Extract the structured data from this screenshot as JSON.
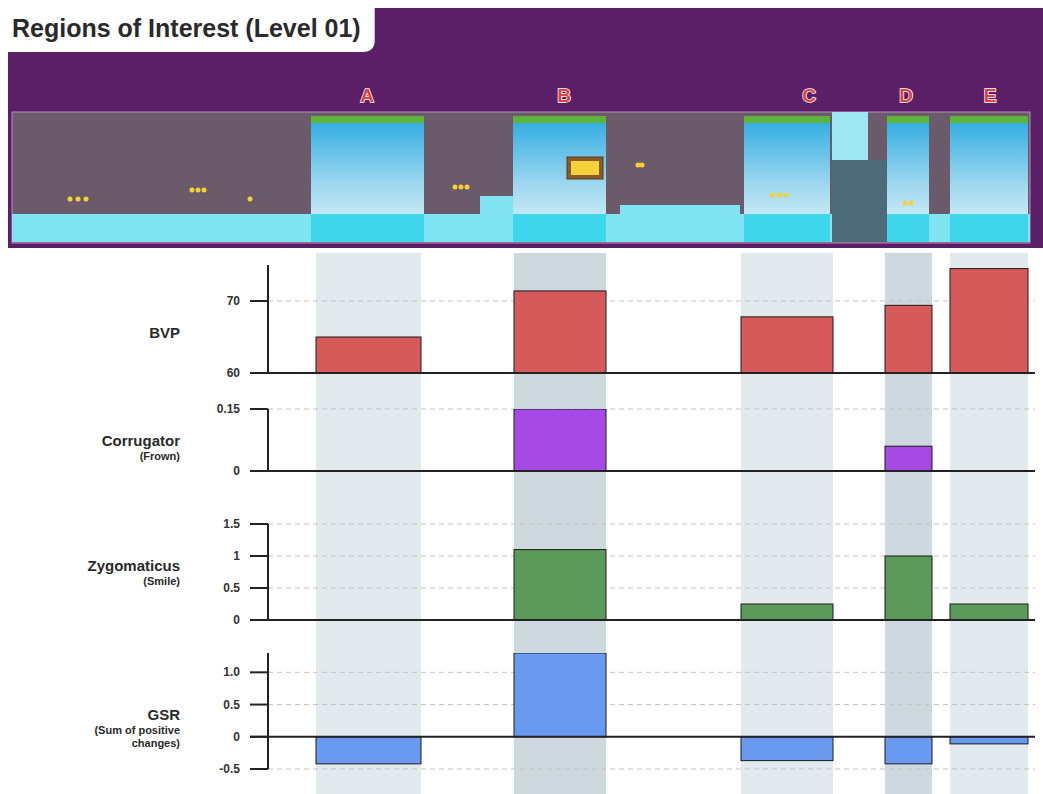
{
  "title": "Regions of Interest (Level 01)",
  "level_strip": {
    "regions": [
      "A",
      "B",
      "C",
      "D",
      "E"
    ]
  },
  "chart_data": [
    {
      "type": "bar",
      "title": "BVP",
      "categories": [
        null,
        null,
        null,
        null,
        null
      ],
      "values": [
        65,
        71.4,
        67.8,
        69.4,
        74.5
      ],
      "color": "#d65a5a",
      "ylim": [
        60,
        75
      ],
      "yticks": [
        60,
        70
      ],
      "grid": true
    },
    {
      "type": "bar",
      "title": "Corrugator",
      "subtitle": "(Frown)",
      "categories": [
        null,
        null,
        null,
        null,
        null
      ],
      "values": [
        0,
        0.15,
        0,
        0.06,
        0
      ],
      "color": "#a64ae6",
      "ylim": [
        0,
        0.15
      ],
      "yticks": [
        0,
        0.15
      ],
      "grid": true
    },
    {
      "type": "bar",
      "title": "Zygomaticus",
      "subtitle": "(Smile)",
      "categories": [
        null,
        null,
        null,
        null,
        null
      ],
      "values": [
        0,
        1.1,
        0.25,
        1,
        0.25
      ],
      "color": "#5b9a58",
      "ylim": [
        0,
        1.5
      ],
      "yticks": [
        0,
        0.5,
        1,
        1.5
      ],
      "grid": true
    },
    {
      "type": "bar",
      "title": "GSR",
      "subtitle": "(Sum of positive changes)",
      "categories": [
        null,
        null,
        null,
        null,
        null
      ],
      "values": [
        -0.42,
        1.3,
        -0.37,
        -0.42,
        -0.11
      ],
      "color": "#6a9af0",
      "ylim": [
        -0.5,
        1.3
      ],
      "yticks": [
        -0.5,
        0,
        0.5,
        {
          "value": 1,
          "label": "1.0"
        }
      ],
      "grid": true
    }
  ]
}
